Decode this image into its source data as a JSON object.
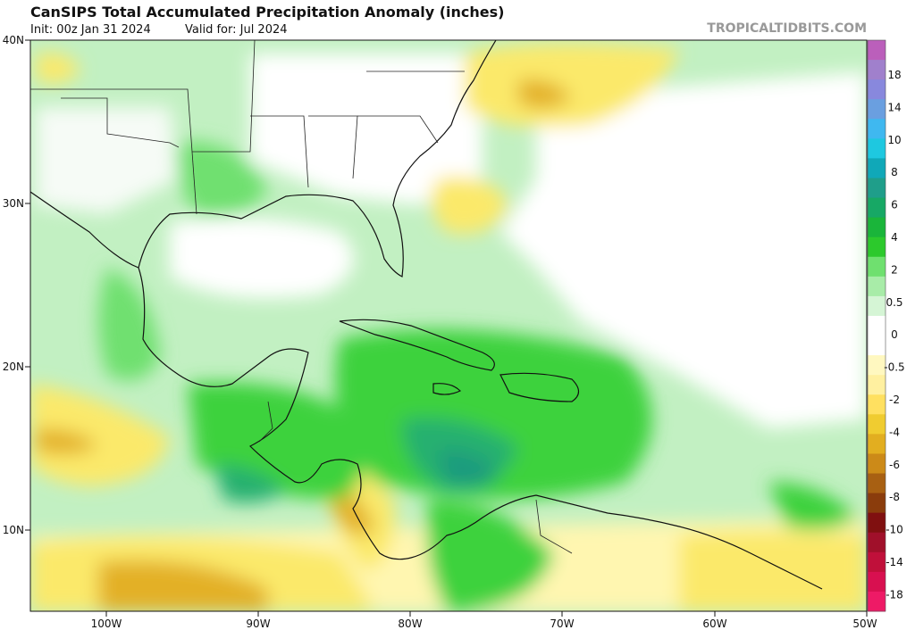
{
  "header": {
    "title": "CanSIPS Total Accumulated Precipitation Anomaly (inches)",
    "init": "Init: 00z Jan 31 2024",
    "valid": "Valid for: Jul 2024",
    "brand": "TROPICALTIDBITS.COM"
  },
  "map": {
    "lon_range": [
      -105,
      -50
    ],
    "lat_range": [
      5,
      40
    ],
    "lat_ticks": [
      "40N",
      "30N",
      "20N",
      "10N"
    ],
    "lon_ticks": [
      "100W",
      "90W",
      "80W",
      "70W",
      "60W",
      "50W"
    ]
  },
  "colorbar": {
    "labels": [
      "18",
      "14",
      "10",
      "8",
      "6",
      "4",
      "2",
      "0.5",
      "0",
      "-0.5",
      "-2",
      "-4",
      "-6",
      "-8",
      "-10",
      "-14",
      "-18"
    ],
    "colors": [
      "#bb5fbb",
      "#a080cc",
      "#8888dd",
      "#6a9fe0",
      "#3fb8f0",
      "#1ec8e0",
      "#10a8b8",
      "#1f9e8a",
      "#17a865",
      "#1ab53a",
      "#2cc92c",
      "#6fe06f",
      "#a8eca8",
      "#d5f5d5",
      "#ffffff",
      "#ffffff",
      "#fff8c0",
      "#fff0a0",
      "#ffe060",
      "#f0cc30",
      "#e2ae20",
      "#cc8a18",
      "#a86012",
      "#8a3c0c",
      "#801010",
      "#a0102a",
      "#c0103a",
      "#d81050",
      "#ee1a66"
    ]
  },
  "legend_colors": {
    "land_base": "#c4f2c4",
    "ocean_base": "#b8edb8",
    "dry_yellow": "#fbe96a",
    "dry_orange": "#e3b028",
    "wet_green": "#3ed23e",
    "wet_teal": "#1b9b7e",
    "coast": "#111111"
  }
}
